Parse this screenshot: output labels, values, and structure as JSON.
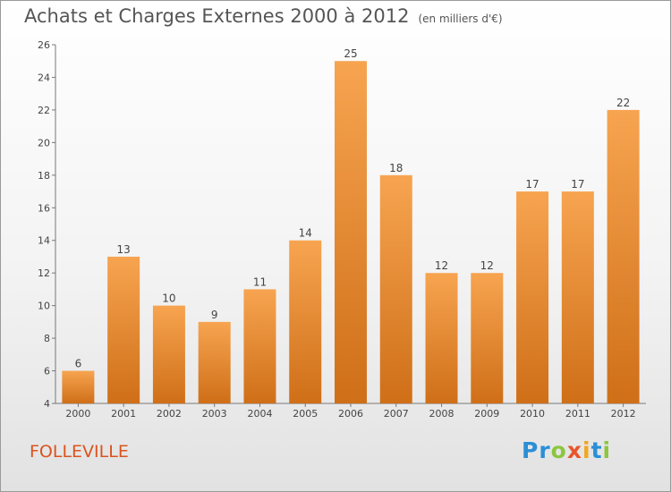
{
  "chart_data": {
    "type": "bar",
    "title": "Achats et Charges Externes 2000 à 2012",
    "subtitle": "(en milliers d'€)",
    "categories": [
      "2000",
      "2001",
      "2002",
      "2003",
      "2004",
      "2005",
      "2006",
      "2007",
      "2008",
      "2009",
      "2010",
      "2011",
      "2012"
    ],
    "values": [
      6,
      13,
      10,
      9,
      11,
      14,
      25,
      18,
      12,
      12,
      17,
      17,
      22
    ],
    "xlabel": "",
    "ylabel": "",
    "ylim": [
      4,
      26
    ],
    "yticks": [
      4,
      6,
      8,
      10,
      12,
      14,
      16,
      18,
      20,
      22,
      24,
      26
    ],
    "grid": false,
    "legend": "none",
    "bar_color": "#f08c2a"
  },
  "footer": {
    "location": "FOLLEVILLE"
  },
  "brand": {
    "letters": [
      {
        "char": "P",
        "color": "#2a8fd6"
      },
      {
        "char": "r",
        "color": "#2a8fd6"
      },
      {
        "char": "o",
        "color": "#8cc63f"
      },
      {
        "char": "x",
        "color": "#e8552a"
      },
      {
        "char": "i",
        "color": "#f2a61f"
      },
      {
        "char": "t",
        "color": "#2a8fd6"
      },
      {
        "char": "i",
        "color": "#8cc63f"
      }
    ]
  }
}
